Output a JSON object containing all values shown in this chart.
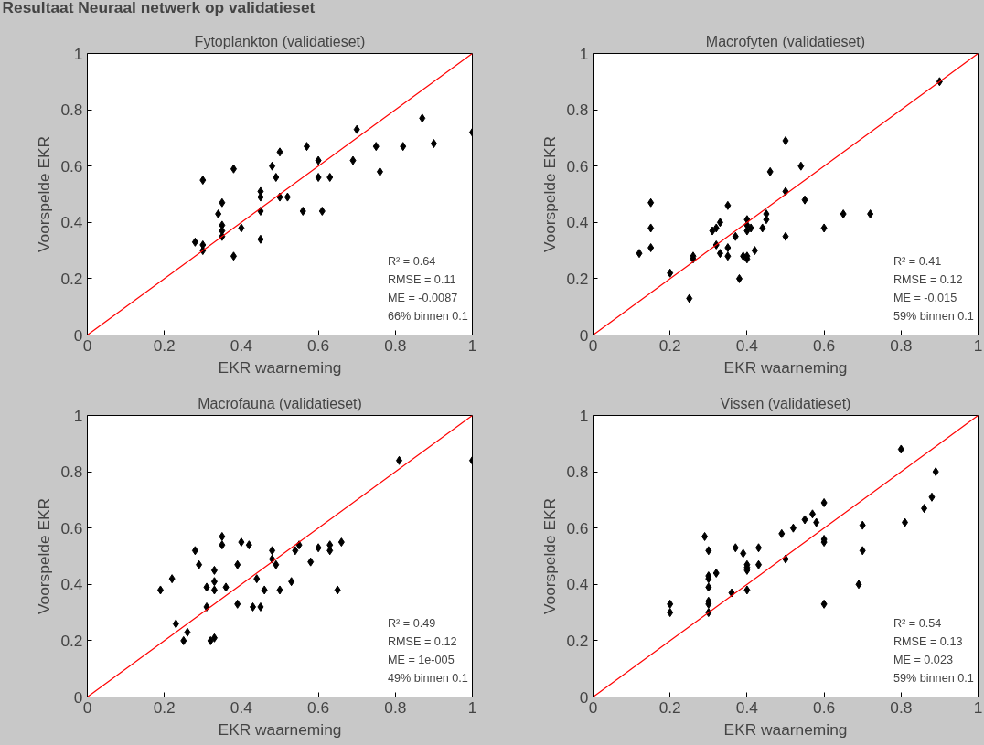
{
  "chart_data": [
    {
      "type": "other",
      "title": "Resultaat Neuraal netwerk op validatieset"
    },
    {
      "type": "scatter",
      "title": "Fytoplankton (validatieset)",
      "xlabel": "EKR waarneming",
      "ylabel": "Voorspelde EKR",
      "xlim": [
        0,
        1
      ],
      "ylim": [
        0,
        1
      ],
      "xticks": [
        0,
        0.2,
        0.4,
        0.6,
        0.8,
        1
      ],
      "yticks": [
        0,
        0.2,
        0.4,
        0.6,
        0.8,
        1
      ],
      "grid": false,
      "series": [
        {
          "type": "scatter",
          "color": "#000000",
          "marker": "diamond",
          "x": [
            0.28,
            0.3,
            0.3,
            0.3,
            0.34,
            0.35,
            0.35,
            0.35,
            0.35,
            0.38,
            0.38,
            0.4,
            0.45,
            0.45,
            0.45,
            0.45,
            0.48,
            0.49,
            0.5,
            0.5,
            0.52,
            0.56,
            0.57,
            0.6,
            0.6,
            0.61,
            0.63,
            0.69,
            0.7,
            0.75,
            0.76,
            0.82,
            0.87,
            0.9,
            1.0
          ],
          "values": [
            0.33,
            0.32,
            0.3,
            0.55,
            0.43,
            0.47,
            0.39,
            0.37,
            0.35,
            0.59,
            0.28,
            0.38,
            0.51,
            0.49,
            0.44,
            0.34,
            0.6,
            0.56,
            0.65,
            0.49,
            0.49,
            0.44,
            0.67,
            0.62,
            0.56,
            0.44,
            0.56,
            0.62,
            0.73,
            0.67,
            0.58,
            0.67,
            0.77,
            0.68,
            0.72
          ]
        },
        {
          "type": "line",
          "color": "#ff0000",
          "line_style": "solid",
          "x": [
            0,
            1
          ],
          "values": [
            0,
            1
          ]
        }
      ],
      "annotations": [
        "R² = 0.64",
        "RMSE = 0.11",
        "ME = -0.0087",
        "66% binnen 0.1"
      ]
    },
    {
      "type": "scatter",
      "title": "Macrofyten (validatieset)",
      "xlabel": "EKR waarneming",
      "ylabel": "Voorspelde EKR",
      "xlim": [
        0,
        1
      ],
      "ylim": [
        0,
        1
      ],
      "xticks": [
        0,
        0.2,
        0.4,
        0.6,
        0.8,
        1
      ],
      "yticks": [
        0,
        0.2,
        0.4,
        0.6,
        0.8,
        1
      ],
      "grid": false,
      "series": [
        {
          "type": "scatter",
          "color": "#000000",
          "marker": "diamond",
          "x": [
            0.12,
            0.15,
            0.15,
            0.15,
            0.2,
            0.25,
            0.26,
            0.26,
            0.31,
            0.32,
            0.33,
            0.32,
            0.33,
            0.35,
            0.35,
            0.35,
            0.37,
            0.38,
            0.39,
            0.4,
            0.4,
            0.4,
            0.4,
            0.4,
            0.41,
            0.42,
            0.44,
            0.45,
            0.45,
            0.46,
            0.5,
            0.5,
            0.5,
            0.54,
            0.55,
            0.6,
            0.65,
            0.72,
            0.9
          ],
          "values": [
            0.29,
            0.47,
            0.38,
            0.31,
            0.22,
            0.13,
            0.28,
            0.27,
            0.37,
            0.38,
            0.4,
            0.32,
            0.29,
            0.46,
            0.31,
            0.28,
            0.35,
            0.2,
            0.28,
            0.41,
            0.39,
            0.37,
            0.28,
            0.27,
            0.38,
            0.3,
            0.38,
            0.43,
            0.41,
            0.58,
            0.69,
            0.51,
            0.35,
            0.6,
            0.48,
            0.38,
            0.43,
            0.43,
            0.9
          ]
        },
        {
          "type": "line",
          "color": "#ff0000",
          "line_style": "solid",
          "x": [
            0,
            1
          ],
          "values": [
            0,
            1
          ]
        }
      ],
      "annotations": [
        "R² = 0.41",
        "RMSE = 0.12",
        "ME = -0.015",
        "59% binnen 0.1"
      ]
    },
    {
      "type": "scatter",
      "title": "Macrofauna (validatieset)",
      "xlabel": "EKR waarneming",
      "ylabel": "Voorspelde EKR",
      "xlim": [
        0,
        1
      ],
      "ylim": [
        0,
        1
      ],
      "xticks": [
        0,
        0.2,
        0.4,
        0.6,
        0.8,
        1
      ],
      "yticks": [
        0,
        0.2,
        0.4,
        0.6,
        0.8,
        1
      ],
      "grid": false,
      "series": [
        {
          "type": "scatter",
          "color": "#000000",
          "marker": "diamond",
          "x": [
            0.19,
            0.22,
            0.23,
            0.25,
            0.26,
            0.28,
            0.29,
            0.31,
            0.31,
            0.32,
            0.33,
            0.33,
            0.33,
            0.33,
            0.35,
            0.35,
            0.36,
            0.39,
            0.39,
            0.4,
            0.42,
            0.43,
            0.44,
            0.45,
            0.46,
            0.48,
            0.48,
            0.49,
            0.5,
            0.53,
            0.54,
            0.55,
            0.58,
            0.6,
            0.63,
            0.63,
            0.65,
            0.66,
            0.81,
            1.0
          ],
          "values": [
            0.38,
            0.42,
            0.26,
            0.2,
            0.23,
            0.52,
            0.47,
            0.39,
            0.32,
            0.2,
            0.21,
            0.45,
            0.41,
            0.38,
            0.57,
            0.54,
            0.39,
            0.47,
            0.33,
            0.55,
            0.54,
            0.32,
            0.42,
            0.32,
            0.38,
            0.52,
            0.49,
            0.47,
            0.38,
            0.41,
            0.52,
            0.54,
            0.48,
            0.53,
            0.54,
            0.52,
            0.38,
            0.55,
            0.84,
            0.84
          ]
        },
        {
          "type": "line",
          "color": "#ff0000",
          "line_style": "solid",
          "x": [
            0,
            1
          ],
          "values": [
            0,
            1
          ]
        }
      ],
      "annotations": [
        "R² = 0.49",
        "RMSE = 0.12",
        "ME = 1e-005",
        "49% binnen 0.1"
      ]
    },
    {
      "type": "scatter",
      "title": "Vissen (validatieset)",
      "xlabel": "EKR waarneming",
      "ylabel": "Voorspelde EKR",
      "xlim": [
        0,
        1
      ],
      "ylim": [
        0,
        1
      ],
      "xticks": [
        0,
        0.2,
        0.4,
        0.6,
        0.8,
        1
      ],
      "yticks": [
        0,
        0.2,
        0.4,
        0.6,
        0.8,
        1
      ],
      "grid": false,
      "series": [
        {
          "type": "scatter",
          "color": "#000000",
          "marker": "diamond",
          "x": [
            0.2,
            0.2,
            0.29,
            0.3,
            0.3,
            0.3,
            0.3,
            0.3,
            0.3,
            0.3,
            0.32,
            0.36,
            0.37,
            0.39,
            0.4,
            0.4,
            0.4,
            0.4,
            0.43,
            0.43,
            0.49,
            0.5,
            0.52,
            0.55,
            0.57,
            0.58,
            0.6,
            0.6,
            0.6,
            0.6,
            0.69,
            0.7,
            0.7,
            0.8,
            0.81,
            0.86,
            0.88,
            0.89
          ],
          "values": [
            0.33,
            0.3,
            0.57,
            0.52,
            0.43,
            0.42,
            0.39,
            0.34,
            0.33,
            0.3,
            0.44,
            0.37,
            0.53,
            0.51,
            0.47,
            0.46,
            0.45,
            0.38,
            0.53,
            0.47,
            0.58,
            0.49,
            0.6,
            0.63,
            0.65,
            0.62,
            0.69,
            0.56,
            0.55,
            0.33,
            0.4,
            0.61,
            0.52,
            0.88,
            0.62,
            0.67,
            0.71,
            0.8
          ]
        },
        {
          "type": "line",
          "color": "#ff0000",
          "line_style": "solid",
          "x": [
            0,
            1
          ],
          "values": [
            0,
            1
          ]
        }
      ],
      "annotations": [
        "R² = 0.54",
        "RMSE = 0.13",
        "ME = 0.023",
        "59% binnen 0.1"
      ]
    }
  ]
}
